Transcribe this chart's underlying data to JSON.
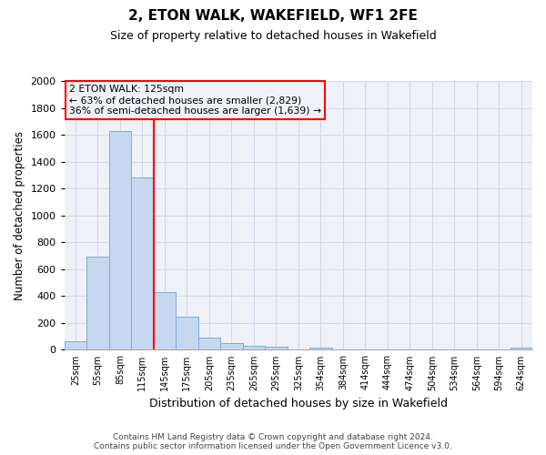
{
  "title": "2, ETON WALK, WAKEFIELD, WF1 2FE",
  "subtitle": "Size of property relative to detached houses in Wakefield",
  "xlabel": "Distribution of detached houses by size in Wakefield",
  "ylabel": "Number of detached properties",
  "bin_labels": [
    "25sqm",
    "55sqm",
    "85sqm",
    "115sqm",
    "145sqm",
    "175sqm",
    "205sqm",
    "235sqm",
    "265sqm",
    "295sqm",
    "325sqm",
    "354sqm",
    "384sqm",
    "414sqm",
    "444sqm",
    "474sqm",
    "504sqm",
    "534sqm",
    "564sqm",
    "594sqm",
    "624sqm"
  ],
  "bar_values": [
    65,
    695,
    1630,
    1280,
    430,
    250,
    90,
    50,
    30,
    20,
    0,
    15,
    0,
    0,
    0,
    0,
    0,
    0,
    0,
    0,
    15
  ],
  "bar_color": "#c5d8f0",
  "bar_edge_color": "#7aadd4",
  "grid_color": "#d0d8e8",
  "vline_color": "red",
  "annotation_title": "2 ETON WALK: 125sqm",
  "annotation_line1": "← 63% of detached houses are smaller (2,829)",
  "annotation_line2": "36% of semi-detached houses are larger (1,639) →",
  "annotation_box_color": "red",
  "ylim": [
    0,
    2000
  ],
  "yticks": [
    0,
    200,
    400,
    600,
    800,
    1000,
    1200,
    1400,
    1600,
    1800,
    2000
  ],
  "footnote1": "Contains HM Land Registry data © Crown copyright and database right 2024.",
  "footnote2": "Contains public sector information licensed under the Open Government Licence v3.0.",
  "background_color": "#ffffff",
  "plot_bg_color": "#eef2f8"
}
